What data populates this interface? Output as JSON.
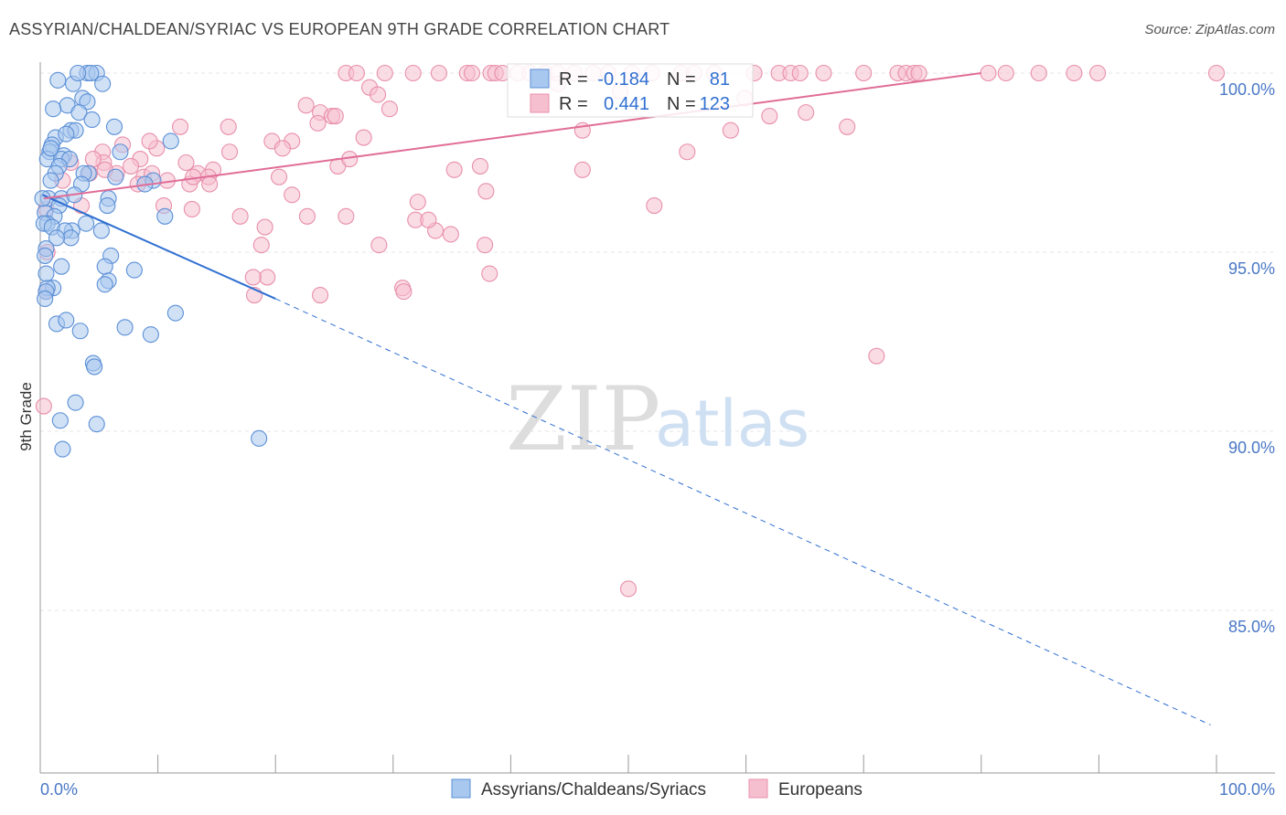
{
  "title": "ASSYRIAN/CHALDEAN/SYRIAC VS EUROPEAN 9TH GRADE CORRELATION CHART",
  "source": "Source: ZipAtlas.com",
  "watermark": {
    "zip": "ZIP",
    "atlas": "atlas"
  },
  "colors": {
    "blue_fill": "#a9c8ef",
    "blue_stroke": "#5b8fd6",
    "blue_line": "#2f6fd1",
    "pink_fill": "#f6bfd0",
    "pink_stroke": "#e88fab",
    "pink_line": "#e06d97",
    "stat_value": "#2f6fd1",
    "grid": "#e4e4e4",
    "axis": "#999999"
  },
  "stats_legend": {
    "rows": [
      {
        "r_label": "R =",
        "r_value": "-0.184",
        "n_label": "N =",
        "n_value": "81"
      },
      {
        "r_label": "R =",
        "r_value": "0.441",
        "n_label": "N =",
        "n_value": "123"
      }
    ]
  },
  "chart_data": {
    "type": "scatter",
    "title": "ASSYRIAN/CHALDEAN/SYRIAC VS EUROPEAN 9TH GRADE CORRELATION CHART",
    "xlabel": "",
    "ylabel": "9th Grade",
    "xlim": [
      0,
      100
    ],
    "ylim": [
      80.5,
      100.6
    ],
    "x_tick_labels": [
      "0.0%",
      "100.0%"
    ],
    "y_ticks": [
      85,
      90,
      95,
      100
    ],
    "y_tick_labels": [
      "85.0%",
      "90.0%",
      "95.0%",
      "100.0%"
    ],
    "legend": [
      "Assyrians/Chaldeans/Syriacs",
      "Europeans"
    ],
    "series": [
      {
        "name": "Assyrians/Chaldeans/Syriacs",
        "color": "blue",
        "trend": {
          "x": [
            0.2,
            20.0
          ],
          "y": [
            96.6,
            93.7
          ],
          "dashed_to": [
            99.5,
            81.8
          ]
        },
        "points": [
          [
            4.0,
            100.0
          ],
          [
            4.8,
            100.0
          ],
          [
            4.3,
            100.0
          ],
          [
            1.5,
            99.8
          ],
          [
            2.8,
            99.7
          ],
          [
            5.3,
            99.7
          ],
          [
            3.6,
            99.3
          ],
          [
            4.0,
            99.2
          ],
          [
            2.3,
            99.1
          ],
          [
            3.3,
            98.9
          ],
          [
            4.4,
            98.7
          ],
          [
            6.3,
            98.5
          ],
          [
            2.6,
            98.4
          ],
          [
            3.0,
            98.4
          ],
          [
            1.3,
            98.2
          ],
          [
            2.2,
            98.3
          ],
          [
            1.0,
            98.0
          ],
          [
            11.1,
            98.1
          ],
          [
            0.8,
            97.8
          ],
          [
            2.0,
            97.7
          ],
          [
            6.8,
            97.8
          ],
          [
            0.6,
            97.6
          ],
          [
            1.8,
            97.6
          ],
          [
            2.5,
            97.6
          ],
          [
            1.6,
            97.4
          ],
          [
            1.3,
            97.2
          ],
          [
            4.1,
            97.2
          ],
          [
            3.7,
            97.2
          ],
          [
            6.4,
            97.1
          ],
          [
            9.6,
            97.0
          ],
          [
            0.9,
            97.0
          ],
          [
            3.5,
            96.9
          ],
          [
            8.9,
            96.9
          ],
          [
            0.7,
            96.5
          ],
          [
            1.8,
            96.5
          ],
          [
            5.8,
            96.5
          ],
          [
            5.7,
            96.3
          ],
          [
            1.6,
            96.3
          ],
          [
            0.4,
            96.1
          ],
          [
            1.2,
            96.0
          ],
          [
            10.6,
            96.0
          ],
          [
            0.6,
            95.8
          ],
          [
            0.3,
            95.8
          ],
          [
            1.0,
            95.7
          ],
          [
            2.7,
            95.6
          ],
          [
            5.2,
            95.6
          ],
          [
            2.1,
            95.6
          ],
          [
            2.6,
            95.4
          ],
          [
            1.4,
            95.4
          ],
          [
            0.5,
            95.1
          ],
          [
            0.4,
            94.9
          ],
          [
            6.0,
            94.9
          ],
          [
            5.5,
            94.6
          ],
          [
            1.8,
            94.6
          ],
          [
            5.8,
            94.2
          ],
          [
            5.5,
            94.1
          ],
          [
            1.1,
            94.0
          ],
          [
            0.6,
            94.0
          ],
          [
            0.5,
            93.9
          ],
          [
            0.4,
            93.7
          ],
          [
            11.5,
            93.3
          ],
          [
            1.4,
            93.0
          ],
          [
            7.2,
            92.9
          ],
          [
            3.4,
            92.8
          ],
          [
            9.4,
            92.7
          ],
          [
            4.5,
            91.9
          ],
          [
            4.6,
            91.8
          ],
          [
            3.0,
            90.8
          ],
          [
            1.7,
            90.3
          ],
          [
            4.8,
            90.2
          ],
          [
            18.6,
            89.8
          ],
          [
            1.9,
            89.5
          ],
          [
            3.2,
            100.0
          ],
          [
            1.1,
            99.0
          ],
          [
            0.9,
            97.9
          ],
          [
            2.9,
            96.6
          ],
          [
            0.2,
            96.5
          ],
          [
            3.9,
            95.8
          ],
          [
            0.5,
            94.4
          ],
          [
            2.2,
            93.1
          ],
          [
            8.0,
            94.5
          ]
        ]
      },
      {
        "name": "Europeans",
        "color": "pink",
        "trend": {
          "x": [
            0.3,
            80.0
          ],
          "y": [
            96.5,
            100.0
          ]
        },
        "points": [
          [
            26.0,
            100.0
          ],
          [
            26.9,
            100.0
          ],
          [
            29.3,
            100.0
          ],
          [
            31.7,
            100.0
          ],
          [
            33.9,
            100.0
          ],
          [
            36.3,
            100.0
          ],
          [
            36.7,
            100.0
          ],
          [
            38.3,
            100.0
          ],
          [
            38.7,
            100.0
          ],
          [
            39.3,
            100.0
          ],
          [
            40.6,
            100.0
          ],
          [
            41.6,
            100.0
          ],
          [
            42.9,
            100.0
          ],
          [
            44.0,
            100.0
          ],
          [
            45.4,
            100.0
          ],
          [
            47.0,
            100.0
          ],
          [
            48.3,
            100.0
          ],
          [
            50.3,
            100.0
          ],
          [
            52.0,
            100.0
          ],
          [
            54.5,
            100.0
          ],
          [
            55.6,
            100.0
          ],
          [
            57.3,
            100.0
          ],
          [
            60.7,
            100.0
          ],
          [
            62.8,
            100.0
          ],
          [
            63.8,
            100.0
          ],
          [
            64.6,
            100.0
          ],
          [
            66.6,
            100.0
          ],
          [
            70.0,
            100.0
          ],
          [
            72.9,
            100.0
          ],
          [
            73.6,
            100.0
          ],
          [
            74.3,
            100.0
          ],
          [
            74.7,
            100.0
          ],
          [
            80.6,
            100.0
          ],
          [
            82.1,
            100.0
          ],
          [
            84.9,
            100.0
          ],
          [
            87.9,
            100.0
          ],
          [
            89.9,
            100.0
          ],
          [
            100.0,
            100.0
          ],
          [
            28.0,
            99.6
          ],
          [
            28.7,
            99.4
          ],
          [
            22.6,
            99.1
          ],
          [
            29.7,
            99.0
          ],
          [
            59.9,
            99.3
          ],
          [
            23.8,
            98.9
          ],
          [
            24.8,
            98.8
          ],
          [
            25.1,
            98.8
          ],
          [
            23.6,
            98.6
          ],
          [
            11.9,
            98.5
          ],
          [
            16.0,
            98.5
          ],
          [
            46.1,
            98.4
          ],
          [
            68.6,
            98.5
          ],
          [
            27.5,
            98.2
          ],
          [
            19.7,
            98.1
          ],
          [
            21.4,
            98.1
          ],
          [
            20.6,
            97.9
          ],
          [
            7.0,
            98.0
          ],
          [
            9.9,
            97.9
          ],
          [
            16.1,
            97.8
          ],
          [
            5.3,
            97.8
          ],
          [
            8.5,
            97.6
          ],
          [
            12.4,
            97.5
          ],
          [
            5.4,
            97.5
          ],
          [
            2.6,
            97.5
          ],
          [
            25.3,
            97.4
          ],
          [
            35.2,
            97.3
          ],
          [
            37.4,
            97.4
          ],
          [
            46.1,
            97.3
          ],
          [
            14.7,
            97.3
          ],
          [
            4.2,
            97.2
          ],
          [
            6.5,
            97.2
          ],
          [
            8.8,
            97.1
          ],
          [
            9.5,
            97.2
          ],
          [
            13.4,
            97.2
          ],
          [
            20.3,
            97.1
          ],
          [
            14.3,
            97.1
          ],
          [
            10.8,
            97.0
          ],
          [
            8.3,
            96.9
          ],
          [
            12.7,
            96.9
          ],
          [
            14.4,
            96.9
          ],
          [
            21.4,
            96.6
          ],
          [
            37.9,
            96.7
          ],
          [
            32.1,
            96.4
          ],
          [
            10.5,
            96.3
          ],
          [
            12.9,
            96.2
          ],
          [
            52.2,
            96.3
          ],
          [
            26.0,
            96.0
          ],
          [
            22.7,
            96.0
          ],
          [
            17.0,
            96.0
          ],
          [
            31.9,
            95.9
          ],
          [
            19.1,
            95.7
          ],
          [
            33.6,
            95.6
          ],
          [
            34.9,
            95.5
          ],
          [
            18.8,
            95.2
          ],
          [
            28.8,
            95.2
          ],
          [
            37.8,
            95.2
          ],
          [
            38.2,
            94.4
          ],
          [
            19.3,
            94.3
          ],
          [
            18.1,
            94.3
          ],
          [
            30.8,
            94.0
          ],
          [
            30.9,
            93.9
          ],
          [
            23.8,
            93.8
          ],
          [
            18.2,
            93.8
          ],
          [
            71.1,
            92.1
          ],
          [
            50.0,
            85.6
          ],
          [
            0.5,
            96.2
          ],
          [
            0.6,
            95.0
          ],
          [
            0.5,
            93.9
          ],
          [
            0.3,
            90.7
          ],
          [
            4.5,
            97.6
          ],
          [
            1.9,
            97.0
          ],
          [
            9.3,
            98.1
          ],
          [
            5.5,
            97.3
          ],
          [
            7.7,
            97.4
          ],
          [
            55.0,
            97.8
          ],
          [
            62.0,
            98.8
          ],
          [
            44.0,
            99.7
          ],
          [
            49.3,
            99.5
          ],
          [
            13.0,
            97.1
          ],
          [
            3.5,
            96.3
          ],
          [
            33.0,
            95.9
          ],
          [
            26.3,
            97.6
          ],
          [
            58.7,
            98.4
          ],
          [
            65.1,
            98.9
          ]
        ]
      }
    ]
  }
}
